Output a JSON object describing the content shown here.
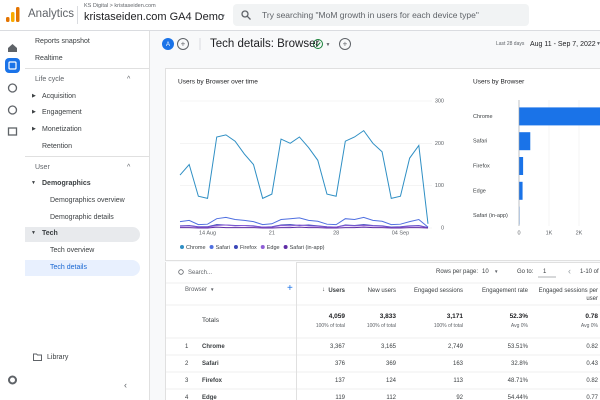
{
  "header": {
    "app": "Analytics",
    "account": "KS Digital > kristaseiden.com",
    "property": "kristaseiden.com GA4 Demo",
    "search_placeholder": "Try searching \"MoM growth in users for each device type\""
  },
  "nav": {
    "top": [
      "Reports snapshot",
      "Realtime"
    ],
    "life_cycle": {
      "title": "Life cycle",
      "items": [
        "Acquisition",
        "Engagement",
        "Monetization",
        "Retention"
      ]
    },
    "user": {
      "title": "User",
      "groups": [
        {
          "title": "Demographics",
          "items": [
            "Demographics overview",
            "Demographic details"
          ]
        },
        {
          "title": "Tech",
          "items": [
            "Tech overview",
            "Tech details"
          ]
        }
      ]
    },
    "library": "Library"
  },
  "report": {
    "title": "Tech details: Browser",
    "date_label": "Last 28 days",
    "date_range": "Aug 11 - Sep 7, 2022"
  },
  "chart_data": [
    {
      "type": "line",
      "title": "Users by Browser over time",
      "categories": [
        null,
        null,
        null,
        "14 Aug",
        null,
        null,
        null,
        null,
        null,
        null,
        "21",
        null,
        null,
        null,
        null,
        null,
        null,
        "28",
        null,
        null,
        null,
        null,
        null,
        null,
        "04 Sep",
        null,
        null,
        null
      ],
      "series": [
        {
          "name": "Chrome",
          "color": "#2f8fc4",
          "values": [
            125,
            150,
            75,
            70,
            215,
            220,
            205,
            175,
            150,
            70,
            80,
            210,
            200,
            215,
            190,
            160,
            80,
            75,
            205,
            215,
            230,
            200,
            180,
            70,
            75,
            165,
            195,
            10
          ]
        },
        {
          "name": "Safari",
          "color": "#4f6fe0",
          "values": [
            15,
            18,
            8,
            9,
            22,
            25,
            20,
            18,
            15,
            8,
            10,
            20,
            22,
            24,
            18,
            16,
            9,
            8,
            22,
            20,
            25,
            18,
            16,
            8,
            9,
            15,
            20,
            2
          ]
        },
        {
          "name": "Firefox",
          "color": "#3b47b8",
          "values": [
            5,
            6,
            3,
            3,
            8,
            7,
            6,
            6,
            5,
            2,
            3,
            7,
            8,
            6,
            7,
            5,
            3,
            2,
            7,
            6,
            8,
            6,
            5,
            2,
            3,
            5,
            6,
            1
          ]
        },
        {
          "name": "Edge",
          "color": "#8e5ed6",
          "values": [
            4,
            5,
            2,
            2,
            6,
            7,
            5,
            6,
            4,
            2,
            2,
            6,
            5,
            7,
            5,
            4,
            2,
            2,
            6,
            5,
            6,
            5,
            4,
            1,
            2,
            4,
            5,
            0
          ]
        },
        {
          "name": "Safari (in-app)",
          "color": "#5e2ca5",
          "values": [
            1,
            1,
            0,
            0,
            2,
            1,
            1,
            1,
            1,
            0,
            0,
            1,
            1,
            2,
            1,
            1,
            0,
            0,
            1,
            1,
            2,
            1,
            1,
            0,
            0,
            1,
            1,
            0
          ]
        }
      ],
      "ylim": [
        0,
        300
      ],
      "yticks": [
        0,
        100,
        200,
        300
      ],
      "grid": true
    },
    {
      "type": "hbar",
      "title": "Users by Browser",
      "categories": [
        "Chrome",
        "Safari",
        "Firefox",
        "Edge",
        "Safari (in-app)"
      ],
      "values": [
        3367,
        376,
        137,
        119,
        15
      ],
      "color": "#1a73e8",
      "xlim": [
        0,
        3500
      ],
      "xticks": [
        0,
        {
          "value": 1000,
          "label": "1K"
        },
        {
          "value": 2000,
          "label": "2K"
        }
      ],
      "grid": true
    }
  ],
  "table": {
    "search": "Search...",
    "rows_per_page_label": "Rows per page:",
    "rows_per_page": "10",
    "goto_label": "Go to:",
    "goto": "1",
    "pagination": "1-10 of",
    "columns": [
      "Browser",
      "Users",
      "New users",
      "Engaged sessions",
      "Engagement rate",
      "Engaged sessions per user"
    ],
    "totals": {
      "label": "Totals",
      "cells": [
        [
          "4,059",
          "100% of total"
        ],
        [
          "3,833",
          "100% of total"
        ],
        [
          "3,171",
          "100% of total"
        ],
        [
          "52.3%",
          "Avg 0%"
        ],
        [
          "0.78",
          "Avg 0%"
        ]
      ]
    },
    "rows": [
      [
        "1",
        "Chrome",
        "3,367",
        "3,165",
        "2,749",
        "53.51%",
        "0.82"
      ],
      [
        "2",
        "Safari",
        "376",
        "369",
        "163",
        "32.8%",
        "0.43"
      ],
      [
        "3",
        "Firefox",
        "137",
        "124",
        "113",
        "48.71%",
        "0.82"
      ],
      [
        "4",
        "Edge",
        "119",
        "112",
        "92",
        "54.44%",
        "0.77"
      ]
    ]
  }
}
